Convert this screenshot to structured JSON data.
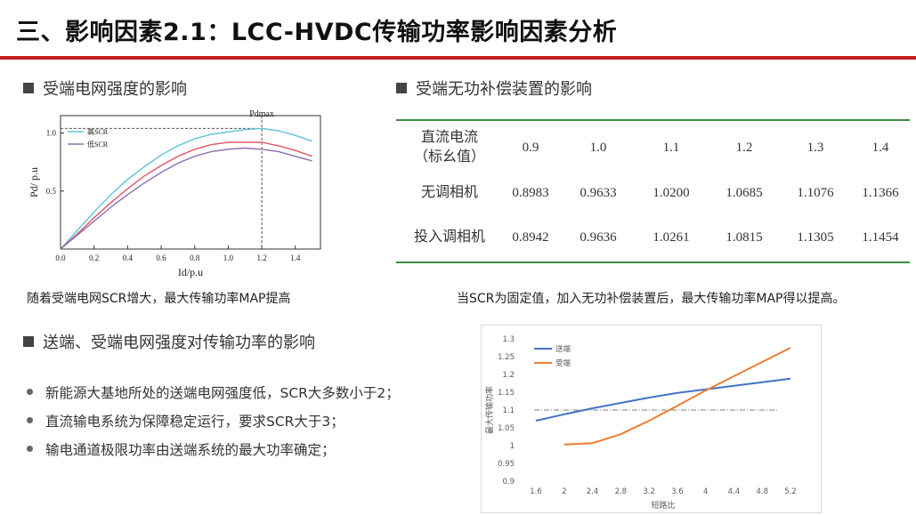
{
  "header": {
    "title": "三、影响因素2.1：LCC-HVDC传输功率影响因素分析"
  },
  "sections": {
    "receiving_strength": "受端电网强度的影响",
    "reactive_comp": "受端无功补偿装置的影响",
    "both_strength": "送端、受端电网强度对传输功率的影响"
  },
  "captions": {
    "left": "随着受端电网SCR增大，最大传输功率MAP提高",
    "right": "当SCR为固定值，加入无功补偿装置后，最大传输功率MAP得以提高。"
  },
  "bullets": [
    "新能源大基地所处的送端电网强度低，SCR大多数小于2；",
    "直流输电系统为保障稳定运行，要求SCR大于3；",
    "输电通道极限功率由送端系统的最大功率确定；"
  ],
  "table": {
    "header_label_line1": "直流电流",
    "header_label_line2": "（标幺值）",
    "columns": [
      "0.9",
      "1.0",
      "1.1",
      "1.2",
      "1.3",
      "1.4"
    ],
    "rows": [
      {
        "label": "无调相机",
        "values": [
          "0.8983",
          "0.9633",
          "1.0200",
          "1.0685",
          "1.1076",
          "1.1366"
        ]
      },
      {
        "label": "投入调相机",
        "values": [
          "0.8942",
          "0.9636",
          "1.0261",
          "1.0815",
          "1.1305",
          "1.1454"
        ]
      }
    ]
  },
  "chart_data": [
    {
      "type": "line",
      "xlabel": "Id/p.u",
      "ylabel": "Pd/ p.u",
      "x_ticks": [
        "0.0",
        "0.2",
        "0.4",
        "0.6",
        "0.8",
        "1.0",
        "1.2",
        "1.4"
      ],
      "y_ticks": [
        "0.5",
        "1.0"
      ],
      "xlim": [
        0,
        1.55
      ],
      "ylim": [
        0,
        1.15
      ],
      "annotations": [
        "Pdmax"
      ],
      "series": [
        {
          "name": "高SCR",
          "color": "#5bc3d6",
          "x": [
            0,
            0.1,
            0.2,
            0.3,
            0.4,
            0.5,
            0.6,
            0.7,
            0.8,
            0.9,
            1.0,
            1.1,
            1.2,
            1.3,
            1.4,
            1.5
          ],
          "y": [
            0,
            0.16,
            0.32,
            0.47,
            0.6,
            0.71,
            0.81,
            0.89,
            0.95,
            0.99,
            1.01,
            1.03,
            1.04,
            1.02,
            0.98,
            0.93
          ]
        },
        {
          "name": "",
          "color": "#e05566",
          "x": [
            0,
            0.1,
            0.2,
            0.3,
            0.4,
            0.5,
            0.6,
            0.7,
            0.8,
            0.9,
            1.0,
            1.1,
            1.2,
            1.3,
            1.4,
            1.5
          ],
          "y": [
            0,
            0.13,
            0.27,
            0.4,
            0.52,
            0.63,
            0.72,
            0.8,
            0.86,
            0.9,
            0.92,
            0.92,
            0.92,
            0.89,
            0.85,
            0.8
          ]
        },
        {
          "name": "低SCR",
          "color": "#8c6fb0",
          "x": [
            0,
            0.1,
            0.2,
            0.3,
            0.4,
            0.5,
            0.6,
            0.7,
            0.8,
            0.9,
            1.0,
            1.1,
            1.2,
            1.3,
            1.4,
            1.5
          ],
          "y": [
            0,
            0.12,
            0.24,
            0.36,
            0.47,
            0.57,
            0.66,
            0.74,
            0.8,
            0.84,
            0.86,
            0.87,
            0.86,
            0.84,
            0.8,
            0.76
          ]
        }
      ]
    },
    {
      "type": "line",
      "xlabel": "短路比",
      "ylabel": "最大传输功率",
      "categories": [
        "1.6",
        "2",
        "2.4",
        "2.8",
        "3.2",
        "3.6",
        "4",
        "4.4",
        "4.8",
        "5.2"
      ],
      "y_ticks": [
        "0.9",
        "0.95",
        "1",
        "1.05",
        "1.1",
        "1.15",
        "1.2",
        "1.25",
        "1.3"
      ],
      "ylim": [
        0.9,
        1.3
      ],
      "reference_line": 1.1,
      "legend_position": "top-left",
      "series": [
        {
          "name": "送端",
          "color": "#4472c4",
          "values": [
            1.07,
            1.088,
            1.105,
            1.12,
            1.135,
            1.148,
            1.158,
            1.168,
            1.178,
            1.188
          ]
        },
        {
          "name": "受端",
          "color": "#ed7d31",
          "values": [
            null,
            1.003,
            1.007,
            1.032,
            1.07,
            1.112,
            1.155,
            1.195,
            1.235,
            1.275
          ]
        }
      ]
    }
  ]
}
